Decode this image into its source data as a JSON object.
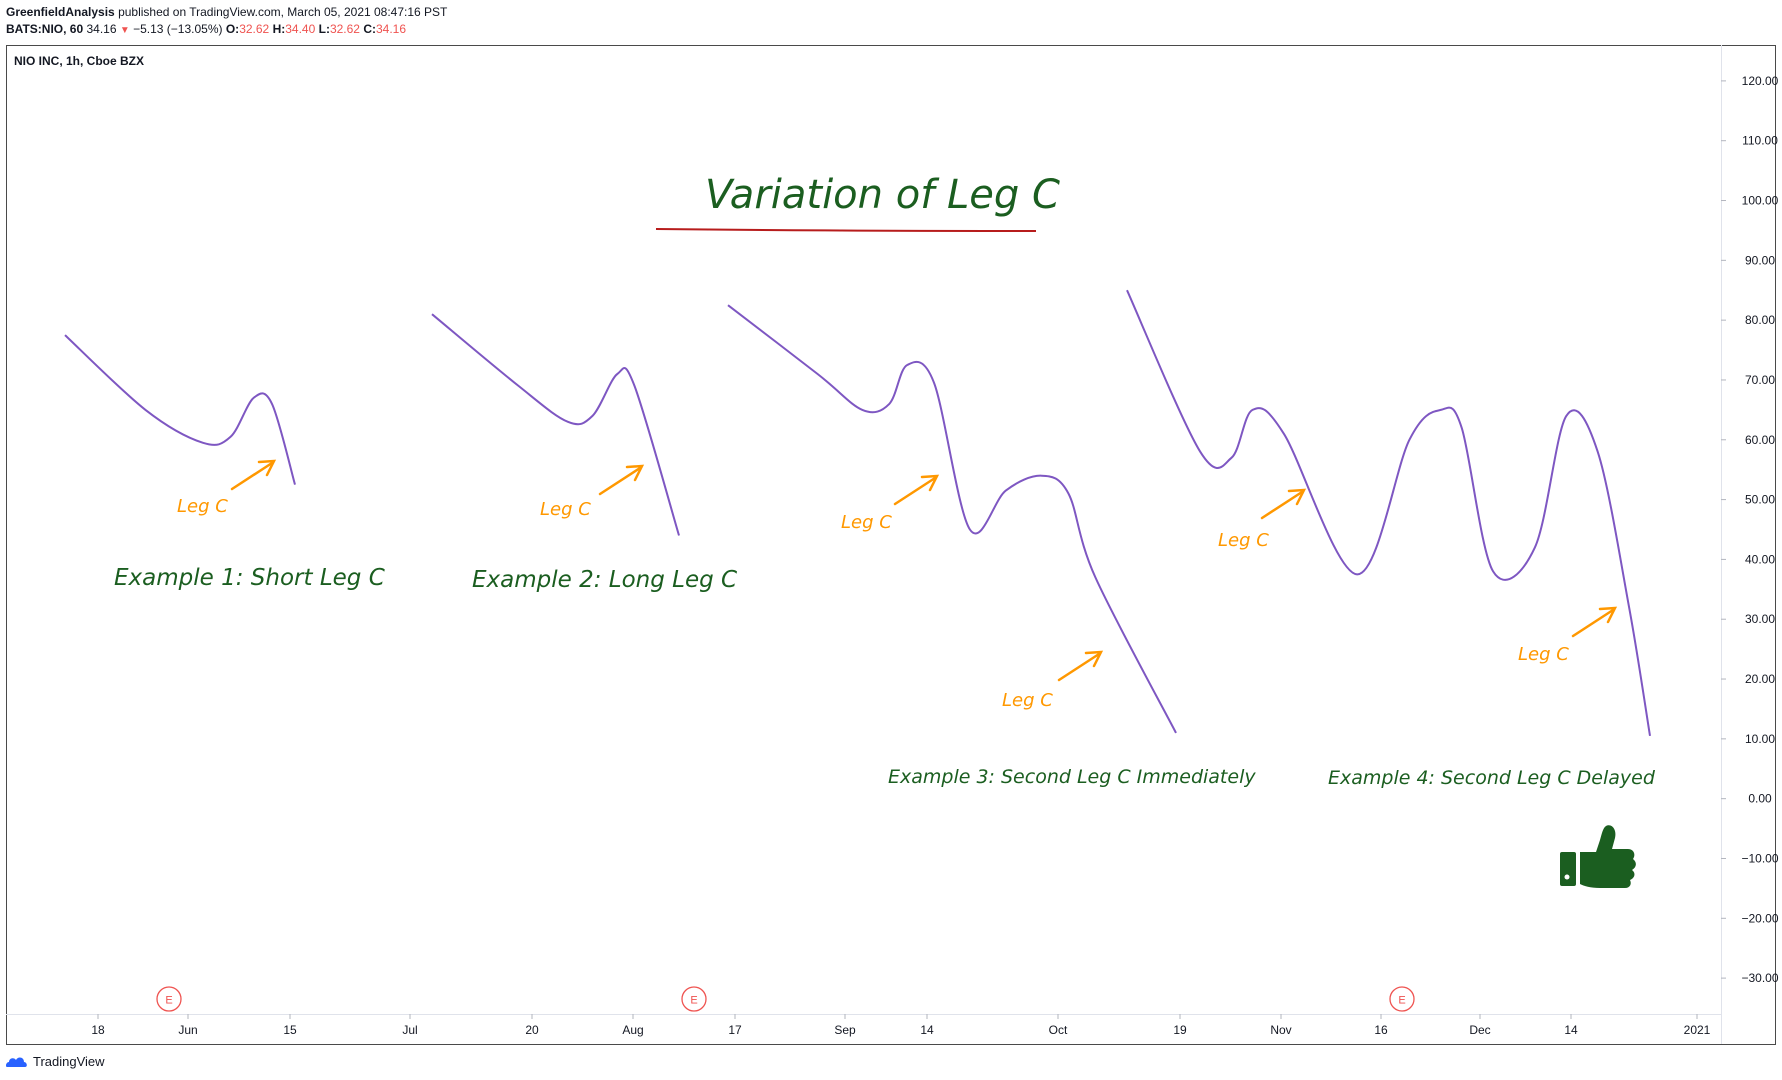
{
  "header": {
    "publisher": "GreenfieldAnalysis",
    "published_text": "published on TradingView.com, March 05, 2021 08:47:16 PST",
    "symbol": "BATS:NIO, 60",
    "last": "34.16",
    "change_arrow": "▼",
    "change": "−5.13 (−13.05%)",
    "o_label": "O:",
    "o_value": "32.62",
    "h_label": "H:",
    "h_value": "34.40",
    "l_label": "L:",
    "l_value": "32.62",
    "c_label": "C:",
    "c_value": "34.16"
  },
  "footer": {
    "brand": "TradingView"
  },
  "colors": {
    "line": "#7e57c2",
    "annotation": "#ff9800",
    "green_text": "#1b5e20",
    "title_underline": "#b71c1c",
    "earnings": "#ef5350"
  },
  "chart_data": {
    "type": "line",
    "legend": "NIO INC, 1h, Cboe BZX",
    "title": "Variation of Leg C",
    "ylim": [
      -36,
      126
    ],
    "y_ticks": [
      120,
      110,
      100,
      90,
      80,
      70,
      60,
      50,
      40,
      30,
      20,
      10,
      0,
      -10,
      -20,
      -30
    ],
    "y_tick_labels": [
      "120.00",
      "110.00",
      "100.00",
      "90.00",
      "80.00",
      "70.00",
      "60.00",
      "50.00",
      "40.00",
      "30.00",
      "20.00",
      "10.00",
      "0.00",
      "−10.00",
      "−20.00",
      "−30.00"
    ],
    "x_tick_labels": [
      "18",
      "Jun",
      "15",
      "Jul",
      "20",
      "Aug",
      "17",
      "Sep",
      "14",
      "Oct",
      "19",
      "Nov",
      "16",
      "Dec",
      "14",
      "2021"
    ],
    "earnings_markers": [
      "E",
      "E",
      "E"
    ],
    "series": [
      {
        "name": "Example 1",
        "points": [
          [
            0.0,
            77.5
          ],
          [
            0.35,
            65
          ],
          [
            0.6,
            59.5
          ],
          [
            0.72,
            60.5
          ],
          [
            0.82,
            67
          ],
          [
            0.9,
            66
          ],
          [
            1.0,
            52.5
          ]
        ]
      },
      {
        "name": "Example 2",
        "points": [
          [
            0.0,
            81
          ],
          [
            0.35,
            69
          ],
          [
            0.55,
            63
          ],
          [
            0.65,
            64
          ],
          [
            0.75,
            71
          ],
          [
            0.82,
            69
          ],
          [
            1.0,
            44
          ]
        ]
      },
      {
        "name": "Example 3",
        "points": [
          [
            0.0,
            82.5
          ],
          [
            0.2,
            71
          ],
          [
            0.3,
            65
          ],
          [
            0.36,
            66
          ],
          [
            0.4,
            72.5
          ],
          [
            0.46,
            69.5
          ],
          [
            0.54,
            45
          ],
          [
            0.62,
            51.5
          ],
          [
            0.7,
            54
          ],
          [
            0.76,
            51
          ],
          [
            0.82,
            37
          ],
          [
            1.0,
            11
          ]
        ]
      },
      {
        "name": "Example 4",
        "points": [
          [
            0.0,
            85
          ],
          [
            0.14,
            58
          ],
          [
            0.2,
            57
          ],
          [
            0.24,
            65
          ],
          [
            0.3,
            61
          ],
          [
            0.44,
            37.5
          ],
          [
            0.54,
            60
          ],
          [
            0.6,
            65
          ],
          [
            0.64,
            62
          ],
          [
            0.7,
            38
          ],
          [
            0.78,
            42
          ],
          [
            0.84,
            64
          ],
          [
            0.9,
            58
          ],
          [
            0.96,
            32
          ],
          [
            1.0,
            10.5
          ]
        ]
      }
    ],
    "annotations": {
      "leg_c_labels": [
        "Leg C",
        "Leg C",
        "Leg C",
        "Leg C",
        "Leg C",
        "Leg C"
      ],
      "examples": [
        "Example 1: Short Leg C",
        "Example 2: Long Leg C",
        "Example 3: Second Leg C Immediately",
        "Example 4: Second Leg C Delayed"
      ]
    }
  }
}
